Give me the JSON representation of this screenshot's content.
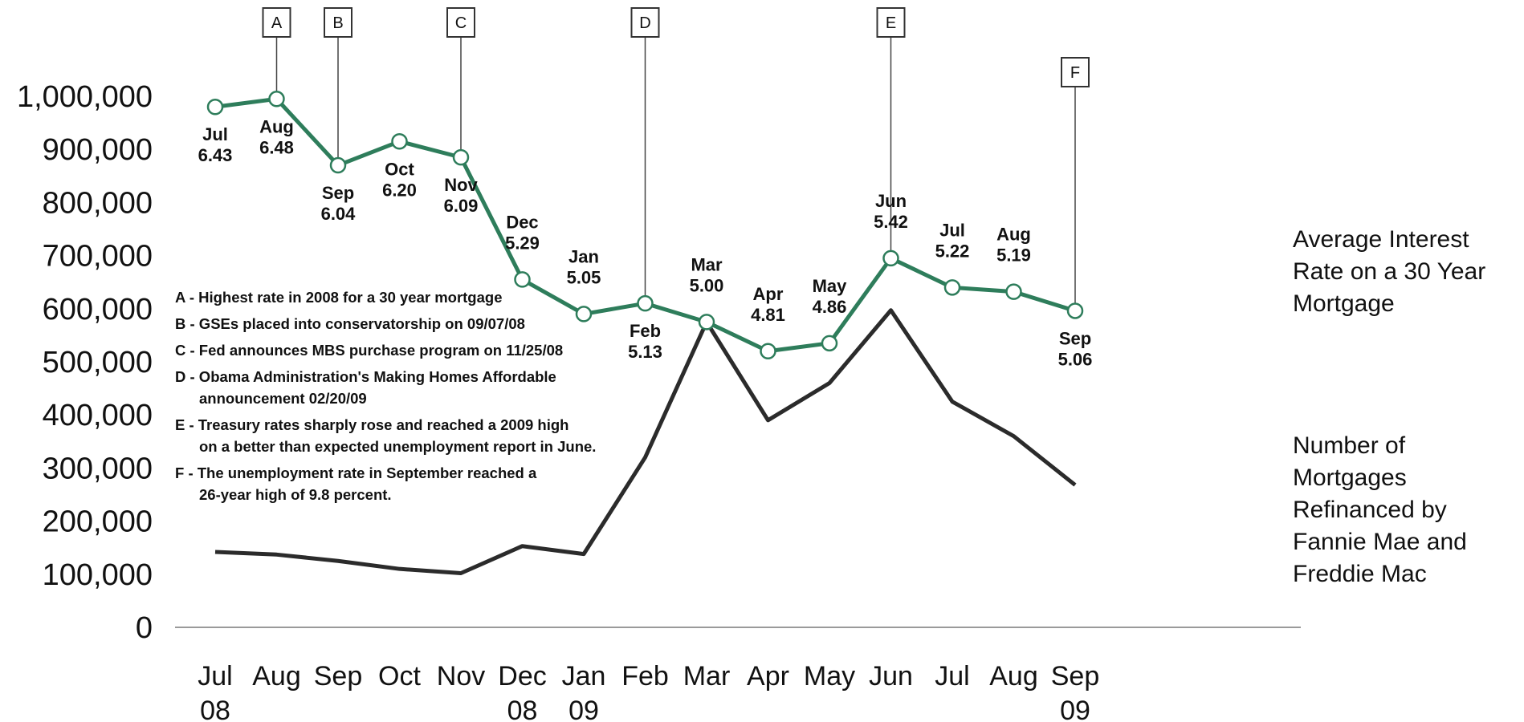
{
  "chart_data": {
    "type": "line",
    "categories": [
      [
        "Jul",
        "08"
      ],
      [
        "Aug",
        ""
      ],
      [
        "Sep",
        ""
      ],
      [
        "Oct",
        ""
      ],
      [
        "Nov",
        ""
      ],
      [
        "Dec",
        "08"
      ],
      [
        "Jan",
        "09"
      ],
      [
        "Feb",
        ""
      ],
      [
        "Mar",
        ""
      ],
      [
        "Apr",
        ""
      ],
      [
        "May",
        ""
      ],
      [
        "Jun",
        ""
      ],
      [
        "Jul",
        ""
      ],
      [
        "Aug",
        ""
      ],
      [
        "Sep",
        "09"
      ]
    ],
    "y_ticks": [
      "0",
      "100,000",
      "200,000",
      "300,000",
      "400,000",
      "500,000",
      "600,000",
      "700,000",
      "800,000",
      "900,000",
      "1,000,000"
    ],
    "ylim": [
      0,
      1000000
    ],
    "series": [
      {
        "name": "Average Interest Rate on a 30 Year Mortgage",
        "label_lines": [
          "Average Interest",
          "Rate on a 30 Year",
          "Mortgage"
        ],
        "color": "#2e7d5b",
        "values": [
          980000,
          995000,
          870000,
          915000,
          885000,
          655000,
          590000,
          610000,
          575000,
          520000,
          535000,
          695000,
          640000,
          632000,
          596000
        ],
        "point_labels": [
          {
            "month": "Jul",
            "rate": "6.43",
            "pos": "below"
          },
          {
            "month": "Aug",
            "rate": "6.48",
            "pos": "below"
          },
          {
            "month": "Sep",
            "rate": "6.04",
            "pos": "below"
          },
          {
            "month": "Oct",
            "rate": "6.20",
            "pos": "below"
          },
          {
            "month": "Nov",
            "rate": "6.09",
            "pos": "below"
          },
          {
            "month": "Dec",
            "rate": "5.29",
            "pos": "above"
          },
          {
            "month": "Jan",
            "rate": "5.05",
            "pos": "above"
          },
          {
            "month": "Feb",
            "rate": "5.13",
            "pos": "below"
          },
          {
            "month": "Mar",
            "rate": "5.00",
            "pos": "above"
          },
          {
            "month": "Apr",
            "rate": "4.81",
            "pos": "above"
          },
          {
            "month": "May",
            "rate": "4.86",
            "pos": "above"
          },
          {
            "month": "Jun",
            "rate": "5.42",
            "pos": "above"
          },
          {
            "month": "Jul",
            "rate": "5.22",
            "pos": "above"
          },
          {
            "month": "Aug",
            "rate": "5.19",
            "pos": "above"
          },
          {
            "month": "Sep",
            "rate": "5.06",
            "pos": "below"
          }
        ]
      },
      {
        "name": "Number of Mortgages Refinanced by Fannie Mae and Freddie Mac",
        "label_lines": [
          "Number of",
          "Mortgages",
          "Refinanced by",
          "Fannie Mae and",
          "Freddie Mac"
        ],
        "color": "#2b2b2b",
        "values": [
          142000,
          137000,
          125000,
          110000,
          102000,
          153000,
          138000,
          320000,
          575000,
          390000,
          460000,
          597000,
          425000,
          360000,
          268000
        ]
      }
    ],
    "event_markers": [
      {
        "letter": "A",
        "index": 1
      },
      {
        "letter": "B",
        "index": 2
      },
      {
        "letter": "C",
        "index": 4
      },
      {
        "letter": "D",
        "index": 7
      },
      {
        "letter": "E",
        "index": 11
      },
      {
        "letter": "F",
        "index": 14
      }
    ],
    "notes": [
      [
        "A - Highest rate in 2008 for a 30 year mortgage"
      ],
      [
        "B - GSEs placed into conservatorship on 09/07/08"
      ],
      [
        "C - Fed announces MBS purchase program on 11/25/08"
      ],
      [
        "D - Obama Administration's Making Homes Affordable",
        "announcement 02/20/09"
      ],
      [
        "E - Treasury rates sharply rose and reached a 2009 high",
        "on a better than expected unemployment report in June."
      ],
      [
        "F - The unemployment rate in September reached a",
        "26-year high of 9.8 percent."
      ]
    ]
  }
}
